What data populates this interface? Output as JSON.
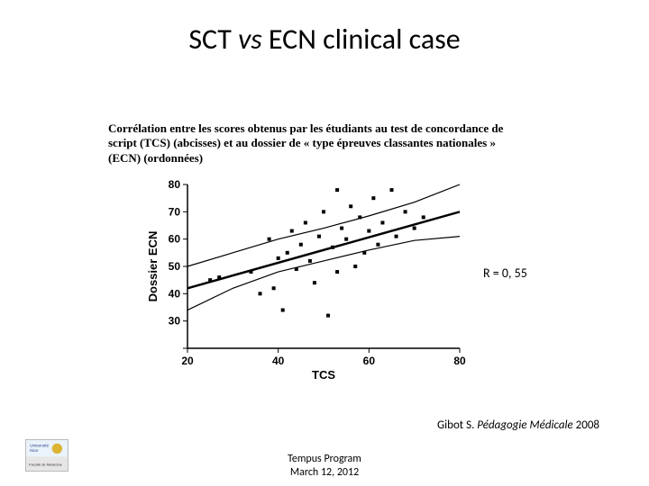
{
  "title": {
    "pre": "SCT ",
    "vs": "vs",
    "post": " ECN clinical case",
    "fontsize": 32
  },
  "subtitle": "Corrélation entre les scores obtenus par les étudiants au test de concordance de script (TCS) (abcisses) et au dossier de « type épreuves classantes nationales » (ECN) (ordonnées)",
  "correlation": {
    "label": "R = 0, 55"
  },
  "citation": {
    "author": "Gibot S. ",
    "journal": "Pédagogie Médicale ",
    "year": "2008"
  },
  "footer": {
    "line1": "Tempus Program",
    "line2": "March 12, 2012"
  },
  "logo": {
    "top_text": "Université",
    "mid_text": "Nice",
    "bottom_text": "Faculté de Médecine",
    "top_bg": "#eaf2fb",
    "bottom_bg": "#e6e6e6"
  },
  "chart": {
    "type": "scatter",
    "xlabel": "TCS",
    "ylabel": "Dossier ECN",
    "label_fontsize": 13,
    "tick_fontsize": 12,
    "xlim": [
      20,
      80
    ],
    "ylim": [
      20,
      80
    ],
    "xtick_step": 20,
    "ytick_step": 10,
    "colors": {
      "axis": "#000000",
      "marker": "#000000",
      "fit": "#000000",
      "background": "#ffffff"
    },
    "marker": {
      "shape": "square",
      "size": 4
    },
    "line_width": {
      "axis": 1.5,
      "fit": 2.5,
      "ci": 1.2
    },
    "fit_line": {
      "x1": 20,
      "y1": 42,
      "x2": 80,
      "y2": 70
    },
    "ci_upper": [
      [
        20,
        50
      ],
      [
        30,
        55
      ],
      [
        40,
        60
      ],
      [
        50,
        64
      ],
      [
        60,
        68.5
      ],
      [
        70,
        73.5
      ],
      [
        80,
        80
      ]
    ],
    "ci_lower": [
      [
        20,
        34
      ],
      [
        30,
        42
      ],
      [
        40,
        48
      ],
      [
        50,
        52
      ],
      [
        60,
        56
      ],
      [
        70,
        59.5
      ],
      [
        80,
        61
      ]
    ],
    "points": [
      [
        25,
        45
      ],
      [
        27,
        46
      ],
      [
        34,
        48
      ],
      [
        36,
        40
      ],
      [
        38,
        60
      ],
      [
        39,
        42
      ],
      [
        40,
        53
      ],
      [
        41,
        34
      ],
      [
        42,
        55
      ],
      [
        43,
        63
      ],
      [
        44,
        49
      ],
      [
        45,
        58
      ],
      [
        46,
        66
      ],
      [
        47,
        52
      ],
      [
        48,
        44
      ],
      [
        49,
        61
      ],
      [
        50,
        70
      ],
      [
        51,
        32
      ],
      [
        52,
        57
      ],
      [
        53,
        48
      ],
      [
        54,
        64
      ],
      [
        55,
        60
      ],
      [
        56,
        72
      ],
      [
        57,
        50
      ],
      [
        58,
        68
      ],
      [
        59,
        55
      ],
      [
        60,
        63
      ],
      [
        61,
        75
      ],
      [
        62,
        58
      ],
      [
        63,
        66
      ],
      [
        65,
        78
      ],
      [
        66,
        61
      ],
      [
        68,
        70
      ],
      [
        70,
        64
      ],
      [
        72,
        68
      ],
      [
        53,
        78
      ]
    ]
  }
}
